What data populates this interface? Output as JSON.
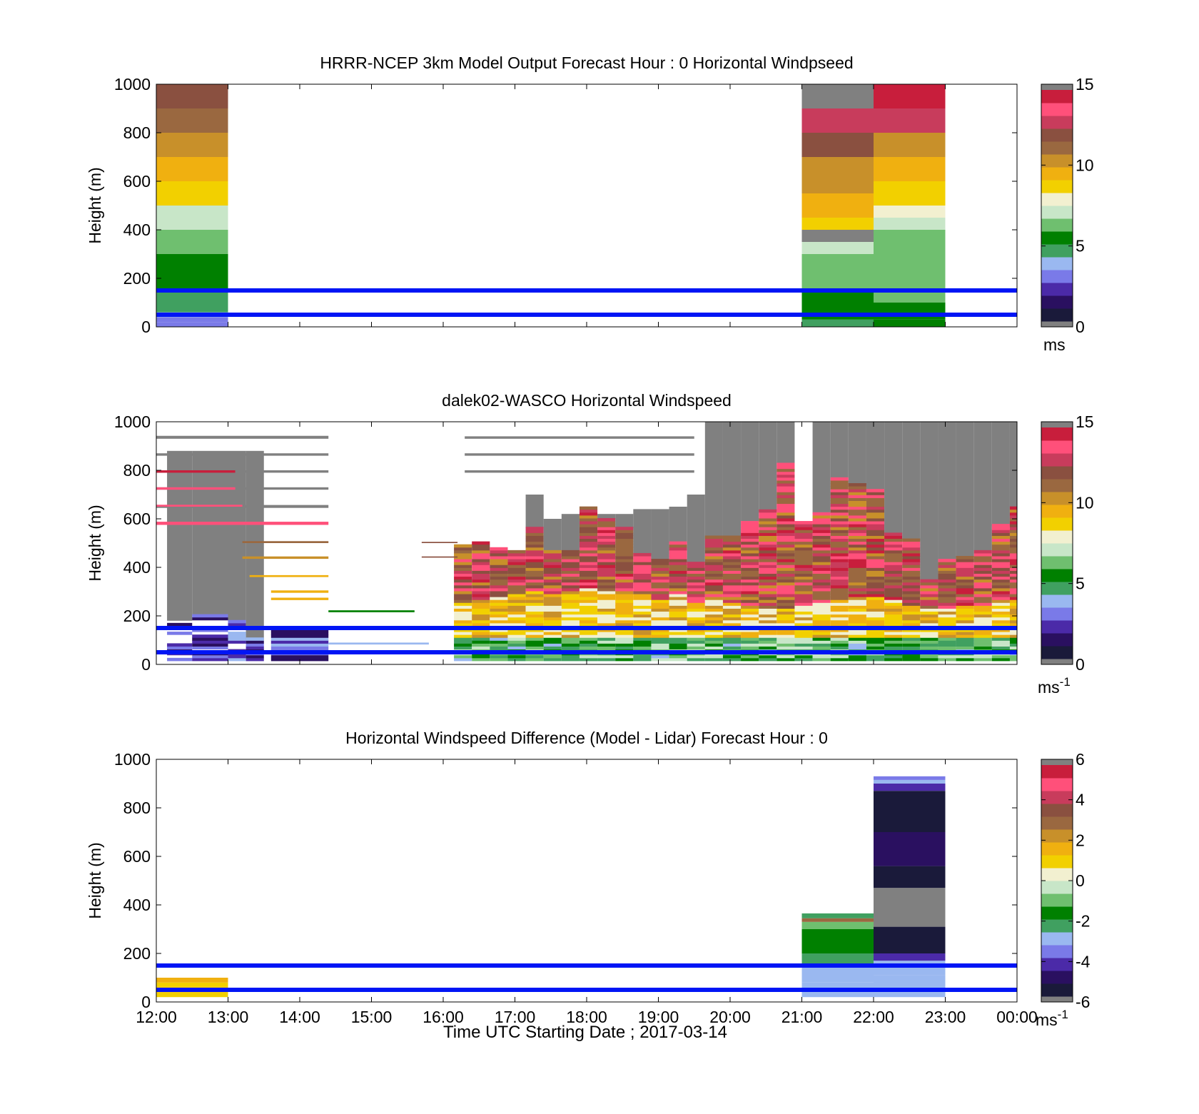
{
  "figure": {
    "xlabel": "Time UTC  Starting Date ; 2017-03-14",
    "x_ticks": [
      "12:00",
      "13:00",
      "14:00",
      "15:00",
      "16:00",
      "17:00",
      "18:00",
      "19:00",
      "20:00",
      "21:00",
      "22:00",
      "23:00",
      "00:00"
    ]
  },
  "colors": {
    "reference_line": "#0015f5",
    "frame": "#000000",
    "missing": "#808080",
    "windspeed_scale": [
      "#1a1a3a",
      "#2a1060",
      "#4b2aa8",
      "#7a7ae8",
      "#9ab8f0",
      "#40a060",
      "#008000",
      "#6fbf6f",
      "#c8e6c8",
      "#f2f0d0",
      "#f2d000",
      "#f0b010",
      "#c8902a",
      "#9a6840",
      "#8a5040",
      "#c83c5c",
      "#ff507a",
      "#c81e3c"
    ],
    "difference_scale": [
      "#1a1a3a",
      "#2a1060",
      "#4b2aa8",
      "#7a7ae8",
      "#9ab8f0",
      "#40a060",
      "#008000",
      "#6fbf6f",
      "#c8e6c8",
      "#f2f0d0",
      "#f2d000",
      "#f0b010",
      "#c8902a",
      "#9a6840",
      "#8a5040",
      "#c83c5c",
      "#ff507a",
      "#c81e3c"
    ]
  },
  "chart_data": [
    {
      "type": "heatmap",
      "title": "HRRR-NCEP 3km Model Output   Forecast Hour : 0 Horizontal Windpseed",
      "ylabel": "Height (m)",
      "ylim": [
        0,
        1000
      ],
      "y_ticks": [
        "0",
        "200",
        "400",
        "600",
        "800",
        "1000"
      ],
      "colorbar": {
        "min": 0,
        "max": 15,
        "ticks": [
          "0",
          "5",
          "10",
          "15"
        ],
        "unit": "ms",
        "unit_sup": ""
      },
      "reference_lines_m": [
        50,
        150
      ],
      "columns": [
        {
          "hour": 0,
          "cells": [
            {
              "z0": 0,
              "z1": 20,
              "v": 2.8
            },
            {
              "z0": 20,
              "z1": 40,
              "v": 3.1
            },
            {
              "z0": 40,
              "z1": 60,
              "v": 3.6
            },
            {
              "z0": 60,
              "z1": 100,
              "v": 4.3
            },
            {
              "z0": 100,
              "z1": 150,
              "v": 4.8
            },
            {
              "z0": 150,
              "z1": 200,
              "v": 5.0
            },
            {
              "z0": 200,
              "z1": 250,
              "v": 5.2
            },
            {
              "z0": 250,
              "z1": 300,
              "v": 5.6
            },
            {
              "z0": 300,
              "z1": 350,
              "v": 5.9
            },
            {
              "z0": 350,
              "z1": 400,
              "v": 6.2
            },
            {
              "z0": 400,
              "z1": 450,
              "v": 6.7
            },
            {
              "z0": 450,
              "z1": 500,
              "v": 7.2
            },
            {
              "z0": 500,
              "z1": 600,
              "v": 8.7
            },
            {
              "z0": 600,
              "z1": 700,
              "v": 9.5
            },
            {
              "z0": 700,
              "z1": 800,
              "v": 10.3
            },
            {
              "z0": 800,
              "z1": 900,
              "v": 11.0
            },
            {
              "z0": 900,
              "z1": 1000,
              "v": 11.7
            }
          ]
        },
        {
          "hour": 9,
          "cells": [
            {
              "z0": 0,
              "z1": 30,
              "v": 4.8
            },
            {
              "z0": 30,
              "z1": 100,
              "v": 5.4
            },
            {
              "z0": 100,
              "z1": 150,
              "v": 5.8
            },
            {
              "z0": 150,
              "z1": 200,
              "v": 6.0
            },
            {
              "z0": 200,
              "z1": 250,
              "v": 6.3
            },
            {
              "z0": 250,
              "z1": 300,
              "v": 6.6
            },
            {
              "z0": 300,
              "z1": 350,
              "v": 7.0
            },
            {
              "z0": 350,
              "z1": 400,
              "v": null
            },
            {
              "z0": 400,
              "z1": 450,
              "v": 8.9
            },
            {
              "z0": 450,
              "z1": 500,
              "v": 9.3
            },
            {
              "z0": 500,
              "z1": 550,
              "v": 9.6
            },
            {
              "z0": 550,
              "z1": 600,
              "v": 10.0
            },
            {
              "z0": 600,
              "z1": 700,
              "v": 10.5
            },
            {
              "z0": 700,
              "z1": 800,
              "v": 11.7
            },
            {
              "z0": 800,
              "z1": 900,
              "v": 13.3
            },
            {
              "z0": 900,
              "z1": 1000,
              "v": null
            }
          ]
        },
        {
          "hour": 10,
          "cells": [
            {
              "z0": 0,
              "z1": 30,
              "v": 5.0
            },
            {
              "z0": 30,
              "z1": 100,
              "v": 5.6
            },
            {
              "z0": 100,
              "z1": 200,
              "v": 6.0
            },
            {
              "z0": 200,
              "z1": 300,
              "v": 6.2
            },
            {
              "z0": 300,
              "z1": 400,
              "v": 6.6
            },
            {
              "z0": 400,
              "z1": 450,
              "v": 7.0
            },
            {
              "z0": 450,
              "z1": 500,
              "v": 7.5
            },
            {
              "z0": 500,
              "z1": 600,
              "v": 8.8
            },
            {
              "z0": 600,
              "z1": 700,
              "v": 9.6
            },
            {
              "z0": 700,
              "z1": 800,
              "v": 10.6
            },
            {
              "z0": 800,
              "z1": 900,
              "v": 12.5
            },
            {
              "z0": 900,
              "z1": 1000,
              "v": 14.2
            }
          ]
        }
      ]
    },
    {
      "type": "heatmap",
      "title": "dalek02-WASCO  Horizontal Windspeed",
      "ylabel": "Height (m)",
      "ylim": [
        0,
        1000
      ],
      "y_ticks": [
        "0",
        "200",
        "400",
        "600",
        "800",
        "1000"
      ],
      "colorbar": {
        "min": 0,
        "max": 15,
        "ticks": [
          "0",
          "5",
          "10",
          "15"
        ],
        "unit": "ms",
        "unit_sup": "-1"
      },
      "reference_lines_m": [
        50,
        150
      ],
      "columns": [
        {
          "t0": 0.15,
          "t1": 0.5,
          "low_top": 180,
          "mid_top": 0,
          "cloud_top": 880,
          "kind": "sparse-low"
        },
        {
          "t0": 0.5,
          "t1": 1.0,
          "low_top": 200,
          "mid_top": 0,
          "cloud_top": 880,
          "kind": "sparse-low"
        },
        {
          "t0": 1.0,
          "t1": 1.25,
          "low_top": 180,
          "mid_top": 0,
          "cloud_top": 880,
          "kind": "sparse-low"
        },
        {
          "t0": 1.25,
          "t1": 1.5,
          "low_top": 100,
          "mid_top": 0,
          "cloud_top": 880,
          "kind": "sparse-low"
        },
        {
          "t0": 1.6,
          "t1": 2.4,
          "low_top": 140,
          "mid_top": 0,
          "cloud_top": 0,
          "kind": "low-only"
        },
        {
          "t0": 4.15,
          "t1": 4.4,
          "low_top": 490,
          "mid_top": 250,
          "cloud_top": 0,
          "kind": "jet"
        },
        {
          "t0": 4.4,
          "t1": 4.65,
          "low_top": 500,
          "mid_top": 260,
          "cloud_top": 0,
          "kind": "jet"
        },
        {
          "t0": 4.65,
          "t1": 4.9,
          "low_top": 480,
          "mid_top": 270,
          "cloud_top": 0,
          "kind": "jet"
        },
        {
          "t0": 4.9,
          "t1": 5.15,
          "low_top": 470,
          "mid_top": 280,
          "cloud_top": 0,
          "kind": "jet"
        },
        {
          "t0": 5.15,
          "t1": 5.4,
          "low_top": 560,
          "mid_top": 300,
          "cloud_top": 700,
          "kind": "jet"
        },
        {
          "t0": 5.4,
          "t1": 5.65,
          "low_top": 470,
          "mid_top": 290,
          "cloud_top": 600,
          "kind": "jet"
        },
        {
          "t0": 5.65,
          "t1": 5.9,
          "low_top": 470,
          "mid_top": 300,
          "cloud_top": 620,
          "kind": "jet"
        },
        {
          "t0": 5.9,
          "t1": 6.15,
          "low_top": 650,
          "mid_top": 310,
          "cloud_top": 650,
          "kind": "jet"
        },
        {
          "t0": 6.15,
          "t1": 6.4,
          "low_top": 600,
          "mid_top": 300,
          "cloud_top": 620,
          "kind": "jet"
        },
        {
          "t0": 6.4,
          "t1": 6.65,
          "low_top": 560,
          "mid_top": 300,
          "cloud_top": 620,
          "kind": "jet"
        },
        {
          "t0": 6.65,
          "t1": 6.9,
          "low_top": 450,
          "mid_top": 280,
          "cloud_top": 640,
          "kind": "jet"
        },
        {
          "t0": 6.9,
          "t1": 7.15,
          "low_top": 430,
          "mid_top": 260,
          "cloud_top": 640,
          "kind": "jet"
        },
        {
          "t0": 7.15,
          "t1": 7.4,
          "low_top": 500,
          "mid_top": 280,
          "cloud_top": 650,
          "kind": "jet"
        },
        {
          "t0": 7.4,
          "t1": 7.65,
          "low_top": 420,
          "mid_top": 250,
          "cloud_top": 700,
          "kind": "jet"
        },
        {
          "t0": 7.65,
          "t1": 7.9,
          "low_top": 520,
          "mid_top": 260,
          "cloud_top": 1000,
          "kind": "jet"
        },
        {
          "t0": 7.9,
          "t1": 8.15,
          "low_top": 520,
          "mid_top": 250,
          "cloud_top": 1000,
          "kind": "jet"
        },
        {
          "t0": 8.15,
          "t1": 8.4,
          "low_top": 590,
          "mid_top": 240,
          "cloud_top": 1000,
          "kind": "jet"
        },
        {
          "t0": 8.4,
          "t1": 8.65,
          "low_top": 630,
          "mid_top": 230,
          "cloud_top": 1000,
          "kind": "jet"
        },
        {
          "t0": 8.65,
          "t1": 8.9,
          "low_top": 830,
          "mid_top": 230,
          "cloud_top": 1000,
          "kind": "jet"
        },
        {
          "t0": 8.9,
          "t1": 9.15,
          "low_top": 590,
          "mid_top": 240,
          "cloud_top": 0,
          "kind": "jet"
        },
        {
          "t0": 9.15,
          "t1": 9.4,
          "low_top": 620,
          "mid_top": 250,
          "cloud_top": 1000,
          "kind": "jet"
        },
        {
          "t0": 9.4,
          "t1": 9.65,
          "low_top": 770,
          "mid_top": 260,
          "cloud_top": 1000,
          "kind": "jet"
        },
        {
          "t0": 9.65,
          "t1": 9.9,
          "low_top": 740,
          "mid_top": 270,
          "cloud_top": 1000,
          "kind": "jet"
        },
        {
          "t0": 9.9,
          "t1": 10.15,
          "low_top": 720,
          "mid_top": 270,
          "cloud_top": 1000,
          "kind": "jet"
        },
        {
          "t0": 10.15,
          "t1": 10.4,
          "low_top": 540,
          "mid_top": 260,
          "cloud_top": 1000,
          "kind": "jet"
        },
        {
          "t0": 10.4,
          "t1": 10.65,
          "low_top": 510,
          "mid_top": 240,
          "cloud_top": 1000,
          "kind": "jet"
        },
        {
          "t0": 10.65,
          "t1": 10.9,
          "low_top": 350,
          "mid_top": 220,
          "cloud_top": 1000,
          "kind": "jet"
        },
        {
          "t0": 10.9,
          "t1": 11.15,
          "low_top": 430,
          "mid_top": 230,
          "cloud_top": 1000,
          "kind": "jet"
        },
        {
          "t0": 11.15,
          "t1": 11.4,
          "low_top": 440,
          "mid_top": 240,
          "cloud_top": 1000,
          "kind": "jet"
        },
        {
          "t0": 11.4,
          "t1": 11.65,
          "low_top": 470,
          "mid_top": 240,
          "cloud_top": 1000,
          "kind": "jet"
        },
        {
          "t0": 11.65,
          "t1": 11.9,
          "low_top": 570,
          "mid_top": 250,
          "cloud_top": 1000,
          "kind": "jet"
        },
        {
          "t0": 11.9,
          "t1": 12.15,
          "low_top": 650,
          "mid_top": 260,
          "cloud_top": 1000,
          "kind": "jet"
        }
      ],
      "isolated_layers": [
        {
          "t0": 0.0,
          "t1": 2.4,
          "z0": 860,
          "z1": 870,
          "v": null
        },
        {
          "t0": 0.0,
          "t1": 2.4,
          "z0": 930,
          "z1": 942,
          "v": null
        },
        {
          "t0": 0.0,
          "t1": 2.4,
          "z0": 790,
          "z1": 800,
          "v": null
        },
        {
          "t0": 0.0,
          "t1": 2.4,
          "z0": 720,
          "z1": 730,
          "v": null
        },
        {
          "t0": 0.0,
          "t1": 2.4,
          "z0": 645,
          "z1": 657,
          "v": null
        },
        {
          "t0": 0.0,
          "t1": 2.4,
          "z0": 575,
          "z1": 588,
          "v": 13.6
        },
        {
          "t0": 0.0,
          "t1": 1.2,
          "z0": 650,
          "z1": 658,
          "v": 13.8
        },
        {
          "t0": 0.0,
          "t1": 1.1,
          "z0": 720,
          "z1": 730,
          "v": 13.7
        },
        {
          "t0": 0.0,
          "t1": 1.1,
          "z0": 790,
          "z1": 800,
          "v": 14.2
        },
        {
          "t0": 1.2,
          "t1": 2.4,
          "z0": 500,
          "z1": 508,
          "v": 11.5
        },
        {
          "t0": 1.2,
          "t1": 2.4,
          "z0": 435,
          "z1": 445,
          "v": 10.6
        },
        {
          "t0": 1.3,
          "t1": 2.4,
          "z0": 360,
          "z1": 368,
          "v": 9.7
        },
        {
          "t0": 1.6,
          "t1": 2.4,
          "z0": 295,
          "z1": 305,
          "v": 9.4
        },
        {
          "t0": 1.6,
          "t1": 2.4,
          "z0": 265,
          "z1": 275,
          "v": 9.6
        },
        {
          "t0": 2.4,
          "t1": 3.6,
          "z0": 215,
          "z1": 223,
          "v": 5.1
        },
        {
          "t0": 2.4,
          "t1": 3.8,
          "z0": 82,
          "z1": 90,
          "v": 3.6
        },
        {
          "t0": 3.7,
          "t1": 4.2,
          "z0": 500,
          "z1": 505,
          "v": 11.8
        },
        {
          "t0": 3.7,
          "t1": 4.2,
          "z0": 440,
          "z1": 445,
          "v": 11.9
        },
        {
          "t0": 4.3,
          "t1": 7.5,
          "z0": 930,
          "z1": 940,
          "v": null
        },
        {
          "t0": 4.3,
          "t1": 7.5,
          "z0": 860,
          "z1": 870,
          "v": null
        },
        {
          "t0": 4.3,
          "t1": 7.5,
          "z0": 790,
          "z1": 800,
          "v": null
        }
      ]
    },
    {
      "type": "heatmap",
      "title": "Horizontal Windspeed Difference (Model - Lidar) Forecast Hour : 0",
      "ylabel": "Height (m)",
      "ylim": [
        0,
        1000
      ],
      "y_ticks": [
        "0",
        "200",
        "400",
        "600",
        "800",
        "1000"
      ],
      "colorbar": {
        "min": -6,
        "max": 6,
        "ticks": [
          "-6",
          "-4",
          "-2",
          "0",
          "2",
          "4",
          "6"
        ],
        "unit": "ms",
        "unit_sup": "-1"
      },
      "reference_lines_m": [
        50,
        150
      ],
      "columns": [
        {
          "hour": 0,
          "cells": [
            {
              "z0": 20,
              "z1": 40,
              "v": 1.3
            },
            {
              "z0": 40,
              "z1": 60,
              "v": 1.6
            },
            {
              "z0": 60,
              "z1": 80,
              "v": 0.9
            },
            {
              "z0": 80,
              "z1": 100,
              "v": 1.4
            }
          ]
        },
        {
          "hour": 9,
          "cells": [
            {
              "z0": 20,
              "z1": 80,
              "v": -2.9
            },
            {
              "z0": 80,
              "z1": 150,
              "v": -2.7
            },
            {
              "z0": 150,
              "z1": 200,
              "v": -2.3
            },
            {
              "z0": 200,
              "z1": 250,
              "v": -1.9
            },
            {
              "z0": 250,
              "z1": 300,
              "v": -1.4
            },
            {
              "z0": 300,
              "z1": 330,
              "v": -1.0
            },
            {
              "z0": 330,
              "z1": 345,
              "v": 3.3
            },
            {
              "z0": 345,
              "z1": 365,
              "v": -2.6
            }
          ]
        },
        {
          "hour": 10,
          "cells": [
            {
              "z0": 20,
              "z1": 110,
              "v": -2.9
            },
            {
              "z0": 110,
              "z1": 170,
              "v": -3.3
            },
            {
              "z0": 170,
              "z1": 200,
              "v": -4.2
            },
            {
              "z0": 200,
              "z1": 310,
              "v": -5.6
            },
            {
              "z0": 310,
              "z1": 470,
              "v": null
            },
            {
              "z0": 470,
              "z1": 560,
              "v": -5.7
            },
            {
              "z0": 560,
              "z1": 700,
              "v": -4.9
            },
            {
              "z0": 700,
              "z1": 870,
              "v": -5.4
            },
            {
              "z0": 870,
              "z1": 900,
              "v": -4.4
            },
            {
              "z0": 900,
              "z1": 915,
              "v": -2.7
            },
            {
              "z0": 915,
              "z1": 930,
              "v": -3.7
            }
          ]
        }
      ]
    }
  ]
}
